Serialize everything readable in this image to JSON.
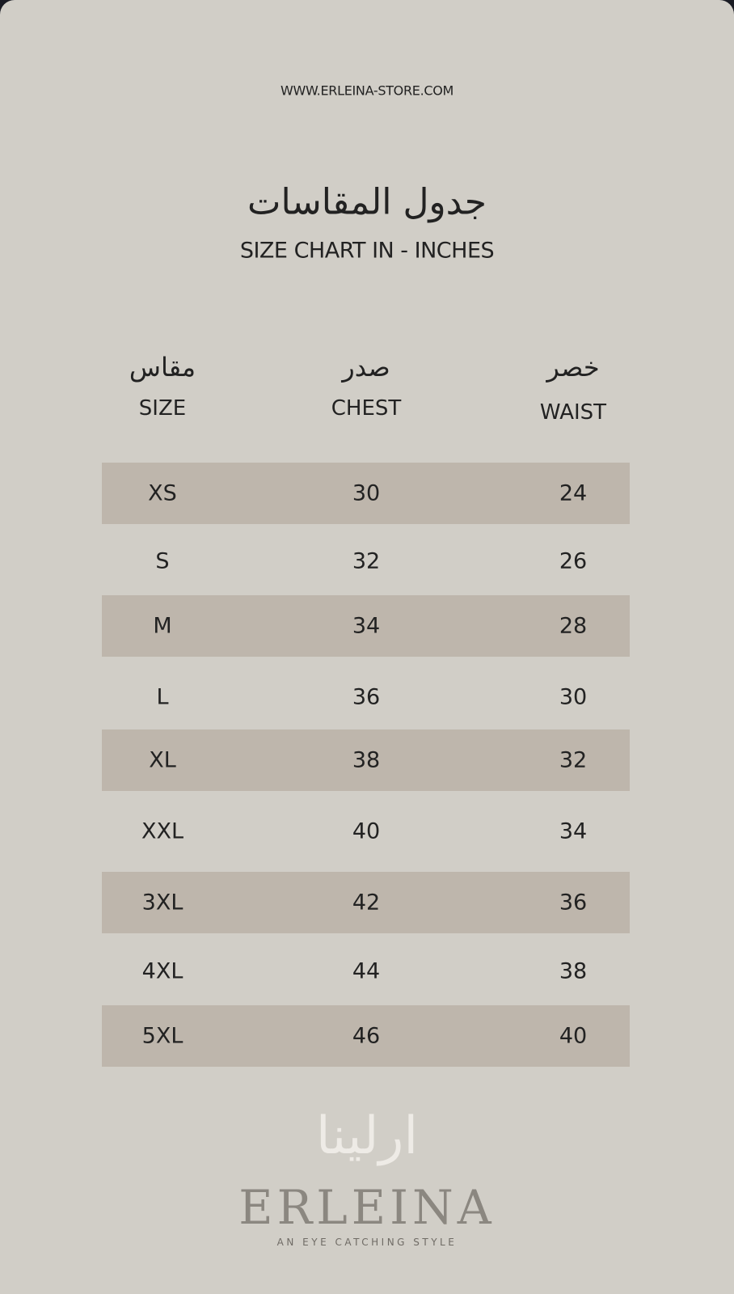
{
  "website": "WWW.ERLEINA-STORE.COM",
  "title_ar": "جدول المقاسات",
  "title_en": "SIZE CHART IN - INCHES",
  "headers": [
    {
      "ar": "مقاس",
      "en": "SIZE"
    },
    {
      "ar": "صدر",
      "en": "CHEST"
    },
    {
      "ar": "خصر",
      "en": "WAIST"
    }
  ],
  "rows": [
    [
      "XS",
      "30",
      "24"
    ],
    [
      "S",
      "32",
      "26"
    ],
    [
      "M",
      "34",
      "28"
    ],
    [
      "L",
      "36",
      "30"
    ],
    [
      "XL",
      "38",
      "32"
    ],
    [
      "XXL",
      "40",
      "34"
    ],
    [
      "3XL",
      "42",
      "36"
    ],
    [
      "4XL",
      "44",
      "38"
    ],
    [
      "5XL",
      "46",
      "40"
    ]
  ],
  "brand": {
    "ar": "ارلينا",
    "en": "ERLEINA",
    "tagline": "AN EYE CATCHING STYLE"
  },
  "colors": {
    "background": "#d1cec7",
    "row_shade": "#beb6ac",
    "text": "#222222"
  }
}
